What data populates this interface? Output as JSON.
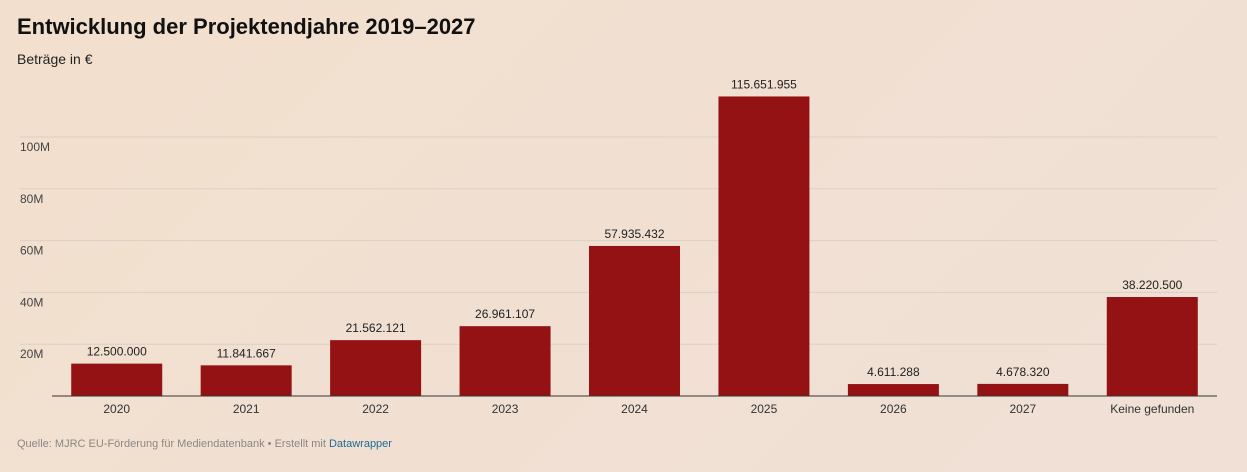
{
  "header": {
    "title": "Entwicklung der Projektendjahre 2019–2027",
    "subtitle": "Beträge in €"
  },
  "footer": {
    "source_text": "Quelle: MJRC EU-Förderung für Mediendatenbank • Erstellt mit ",
    "link_label": "Datawrapper"
  },
  "colors": {
    "bar": "#951214",
    "grid": "#dccfc4",
    "baseline": "#333333"
  },
  "chart_data": {
    "type": "bar",
    "title": "Entwicklung der Projektendjahre 2019–2027",
    "subtitle": "Beträge in €",
    "categories": [
      "2020",
      "2021",
      "2022",
      "2023",
      "2024",
      "2025",
      "2026",
      "2027",
      "Keine gefunden"
    ],
    "values": [
      12500000,
      11841667,
      21562121,
      26961107,
      57935432,
      115651955,
      4611288,
      4678320,
      38220500
    ],
    "value_labels": [
      "12.500.000",
      "11.841.667",
      "21.562.121",
      "26.961.107",
      "57.935.432",
      "115.651.955",
      "4.611.288",
      "4.678.320",
      "38.220.500"
    ],
    "y_ticks": [
      20000000,
      40000000,
      60000000,
      80000000,
      100000000
    ],
    "y_tick_labels": [
      "20M",
      "40M",
      "60M",
      "80M",
      "100M"
    ],
    "ylim": [
      0,
      120000000
    ],
    "grid": true,
    "xlabel": "",
    "ylabel": ""
  }
}
